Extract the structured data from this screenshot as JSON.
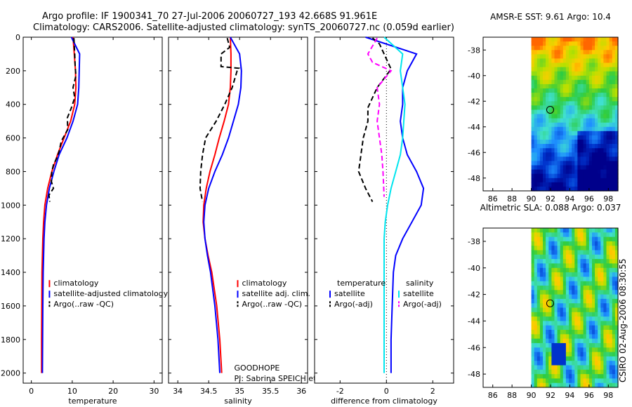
{
  "header": {
    "line1": "Argo profile: IF 1900341_70 27-Jul-2006 20060727_193 42.668S 91.961E",
    "line2": "Climatology: CARS2006. Satellite-adjusted climatology: synTS_20060727.nc (0.059d earlier)"
  },
  "colors": {
    "climatology": "#ff0000",
    "satellite": "#0000ff",
    "argo": "#000000",
    "satellite_diff": "#00e5ee",
    "argo_diff": "#ff00ff"
  },
  "chart_data": [
    {
      "type": "line",
      "id": "temperature",
      "xlabel": "temperature",
      "ylabel": "",
      "xlim": [
        -2,
        32
      ],
      "ylim": [
        2060,
        0
      ],
      "xticks": [
        0,
        10,
        20,
        30
      ],
      "yticks": [
        0,
        200,
        400,
        600,
        800,
        1000,
        1200,
        1400,
        1600,
        1800,
        2000
      ],
      "legend": {
        "position": "bottom-right",
        "entries": [
          "climatology",
          "satellite-adjusted climatology",
          "Argo(..raw -QC)"
        ]
      },
      "series": [
        {
          "name": "climatology",
          "color": "#ff0000",
          "style": "solid",
          "x": [
            10.2,
            10.5,
            10.8,
            10.9,
            10.6,
            9.6,
            8.0,
            6.4,
            5.0,
            4.0,
            3.3,
            3.0,
            2.8,
            2.7,
            2.6,
            2.55,
            2.5,
            2.5
          ],
          "y": [
            0,
            100,
            200,
            300,
            400,
            500,
            600,
            700,
            800,
            900,
            1000,
            1100,
            1200,
            1300,
            1400,
            1600,
            1800,
            2000
          ]
        },
        {
          "name": "satellite-adjusted climatology",
          "color": "#0000ff",
          "style": "solid",
          "x": [
            9.8,
            11.8,
            11.7,
            11.6,
            11.3,
            10.2,
            8.7,
            6.8,
            5.5,
            4.4,
            3.7,
            3.3,
            3.1,
            3.0,
            2.9,
            2.8,
            2.75,
            2.7
          ],
          "y": [
            0,
            100,
            200,
            300,
            400,
            500,
            600,
            700,
            800,
            900,
            1000,
            1100,
            1200,
            1300,
            1400,
            1600,
            1800,
            2000
          ]
        },
        {
          "name": "Argo(..raw -QC)",
          "color": "#000000",
          "style": "dashed",
          "x": [
            10.4,
            10.6,
            10.7,
            10.9,
            10.2,
            10.6,
            9.8,
            8.8,
            8.9,
            7.3,
            6.8,
            6.2,
            5.4,
            5.0,
            4.9,
            5.4,
            4.3,
            4.5
          ],
          "y": [
            5,
            100,
            170,
            230,
            300,
            360,
            420,
            480,
            550,
            620,
            680,
            720,
            760,
            800,
            860,
            900,
            940,
            980
          ]
        }
      ]
    },
    {
      "type": "line",
      "id": "salinity",
      "xlabel": "salinity",
      "ylabel": "",
      "xlim": [
        33.85,
        36.1
      ],
      "ylim": [
        2060,
        0
      ],
      "xticks": [
        34,
        34.5,
        35,
        35.5,
        36
      ],
      "yticks": [
        0,
        200,
        400,
        600,
        800,
        1000,
        1200,
        1400,
        1600,
        1800,
        2000
      ],
      "legend": {
        "position": "bottom-right",
        "entries": [
          "climatology",
          "satellite adj. clim.",
          "Argo(..raw -QC)"
        ]
      },
      "annotation": [
        "GOODHOPE",
        "PI: Sabrina SPEICH et Michel ARHAN"
      ],
      "series": [
        {
          "name": "climatology",
          "color": "#ff0000",
          "style": "solid",
          "x": [
            34.85,
            34.86,
            34.86,
            34.85,
            34.82,
            34.75,
            34.67,
            34.6,
            34.52,
            34.46,
            34.42,
            34.41,
            34.44,
            34.49,
            34.55,
            34.63,
            34.68,
            34.71
          ],
          "y": [
            0,
            100,
            200,
            300,
            400,
            500,
            600,
            700,
            800,
            900,
            1000,
            1100,
            1200,
            1300,
            1400,
            1600,
            1800,
            2000
          ]
        },
        {
          "name": "satellite adj. clim.",
          "color": "#0000ff",
          "style": "solid",
          "x": [
            34.85,
            35.0,
            35.03,
            35.02,
            34.98,
            34.9,
            34.82,
            34.72,
            34.6,
            34.5,
            34.44,
            34.42,
            34.44,
            34.48,
            34.53,
            34.6,
            34.65,
            34.68
          ],
          "y": [
            0,
            100,
            200,
            300,
            400,
            500,
            600,
            700,
            800,
            900,
            1000,
            1100,
            1200,
            1300,
            1400,
            1600,
            1800,
            2000
          ]
        },
        {
          "name": "Argo(..raw -QC)",
          "color": "#000000",
          "style": "dashed",
          "x": [
            34.8,
            34.84,
            34.7,
            34.7,
            34.99,
            34.96,
            34.88,
            34.76,
            34.62,
            34.45,
            34.4,
            34.37,
            34.36,
            34.38,
            34.4
          ],
          "y": [
            5,
            60,
            100,
            175,
            185,
            200,
            300,
            400,
            500,
            600,
            700,
            800,
            900,
            940,
            980
          ]
        }
      ]
    },
    {
      "type": "line",
      "id": "difference",
      "xlabel": "difference from climatology",
      "ylabel": "",
      "xlim": [
        -3.1,
        2.9
      ],
      "ylim": [
        2060,
        0
      ],
      "xticks": [
        -2,
        0,
        2
      ],
      "yticks": [
        0,
        200,
        400,
        600,
        800,
        1000,
        1200,
        1400,
        1600,
        1800,
        2000
      ],
      "legend": {
        "position": "bottom-right",
        "entries": [
          "temperature",
          "satellite",
          "Argo(-adj)",
          "salinity",
          "satellite",
          "Argo(-adj)"
        ]
      },
      "series": [
        {
          "name": "temperature satellite",
          "color": "#0000ff",
          "style": "solid",
          "x": [
            -0.9,
            1.3,
            0.9,
            0.7,
            0.7,
            0.6,
            0.7,
            0.9,
            1.3,
            1.6,
            1.5,
            1.1,
            0.7,
            0.4,
            0.3,
            0.25,
            0.2,
            0.2
          ],
          "y": [
            0,
            100,
            200,
            300,
            400,
            500,
            600,
            700,
            800,
            900,
            1000,
            1100,
            1200,
            1300,
            1400,
            1600,
            1800,
            2000
          ]
        },
        {
          "name": "temperature Argo(-adj)",
          "color": "#000000",
          "style": "dashed",
          "x": [
            -0.6,
            -0.3,
            0.2,
            -0.4,
            -0.8,
            -0.8,
            -1.0,
            -1.1,
            -1.2,
            -0.9,
            -0.6
          ],
          "y": [
            5,
            40,
            190,
            300,
            420,
            500,
            600,
            700,
            800,
            900,
            980
          ]
        },
        {
          "name": "salinity satellite",
          "color": "#00e5ee",
          "style": "solid",
          "x": [
            -0.1,
            0.7,
            0.6,
            0.7,
            0.8,
            0.75,
            0.7,
            0.6,
            0.4,
            0.2,
            0.05,
            -0.05,
            -0.1,
            -0.1,
            -0.1,
            -0.1,
            -0.1,
            -0.1
          ],
          "y": [
            0,
            100,
            200,
            300,
            400,
            500,
            600,
            700,
            800,
            900,
            1000,
            1100,
            1200,
            1300,
            1400,
            1600,
            1800,
            2000
          ]
        },
        {
          "name": "salinity Argo(-adj)",
          "color": "#ff00ff",
          "style": "dashed",
          "x": [
            -0.4,
            -0.8,
            -0.6,
            0.2,
            -0.4,
            -0.3,
            -0.4,
            -0.3,
            -0.2,
            -0.15,
            -0.1
          ],
          "y": [
            5,
            100,
            150,
            200,
            300,
            400,
            500,
            600,
            700,
            800,
            950
          ]
        }
      ]
    },
    {
      "type": "heatmap",
      "id": "sst-map",
      "title": "AMSR-E SST: 9.61 Argo: 10.4",
      "xlim": [
        85,
        99
      ],
      "ylim": [
        -49,
        -37
      ],
      "xticks": [
        86,
        88,
        90,
        92,
        94,
        96,
        98
      ],
      "yticks": [
        -48,
        -46,
        -44,
        -42,
        -40,
        -38
      ],
      "data_extent_lon": [
        90,
        99
      ],
      "argo_position": {
        "lon": 91.961,
        "lat": -42.668
      }
    },
    {
      "type": "heatmap",
      "id": "sla-map",
      "title": "Altimetric SLA: 0.088 Argo: 0.037",
      "xlim": [
        85,
        99
      ],
      "ylim": [
        -49,
        -37
      ],
      "xticks": [
        86,
        88,
        90,
        92,
        94,
        96,
        98
      ],
      "yticks": [
        -48,
        -46,
        -44,
        -42,
        -40,
        -38
      ],
      "data_extent_lon": [
        90,
        99
      ],
      "argo_position": {
        "lon": 91.961,
        "lat": -42.668
      }
    }
  ],
  "footer_stamp": "CSIRO 02-Aug-2006 08:30:55"
}
